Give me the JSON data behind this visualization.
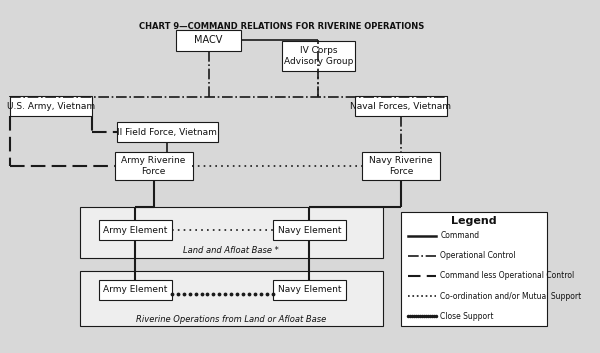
{
  "title": "CHART 9—COMMAND RELATIONS FOR RIVERINE OPERATIONS",
  "bg_color": "#d8d8d8",
  "box_facecolor": "#ffffff",
  "box_edgecolor": "#1a1a1a",
  "text_color": "#111111",
  "legend_title": "Legend",
  "legend_items": [
    {
      "label": "Command",
      "style": "solid"
    },
    {
      "label": "Operational Control",
      "style": "dashdot"
    },
    {
      "label": "Command less Operational Control",
      "style": "dashed"
    },
    {
      "label": "Co-ordination and/or Mutual Support",
      "style": "dotted"
    },
    {
      "label": "Close Support",
      "style": "closesupport"
    }
  ]
}
